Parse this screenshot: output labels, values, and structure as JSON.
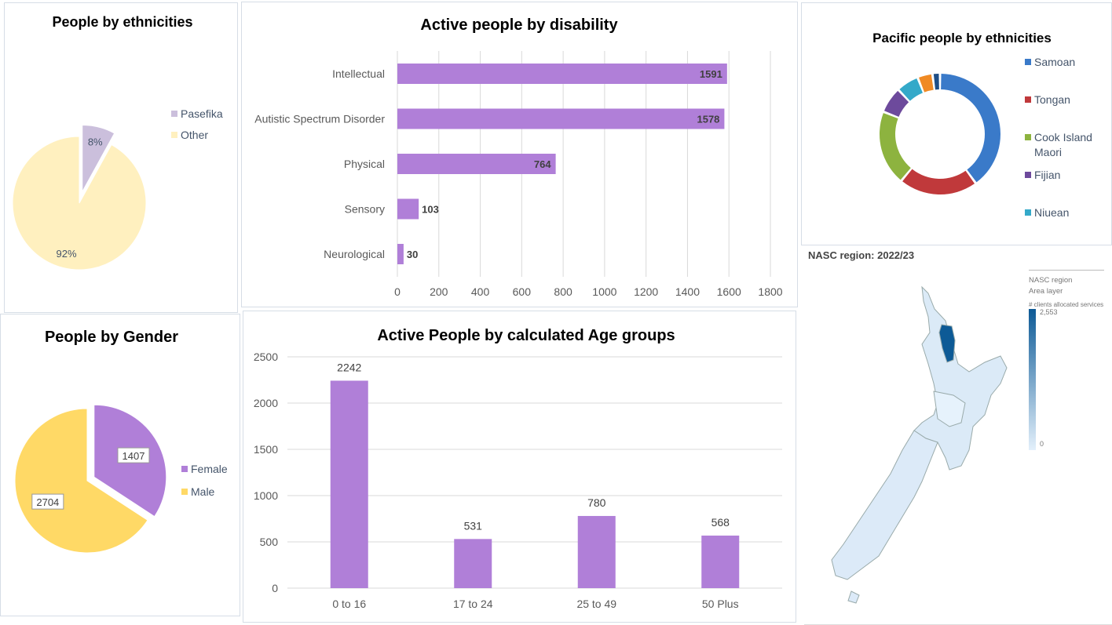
{
  "chart_data": [
    {
      "type": "pie",
      "title": "People by ethnicities",
      "categories": [
        "Pasefika",
        "Other"
      ],
      "values": [
        8,
        92
      ],
      "data_labels": [
        "8%",
        "92%"
      ],
      "colors": [
        "#cbbfdc",
        "#fff0bf"
      ],
      "legend": "right"
    },
    {
      "type": "bar",
      "orientation": "horizontal",
      "title": "Active people by disability",
      "categories": [
        "Intellectual",
        "Autistic Spectrum Disorder",
        "Physical",
        "Sensory",
        "Neurological"
      ],
      "values": [
        1591,
        1578,
        764,
        103,
        30
      ],
      "xlim": [
        0,
        1800
      ],
      "xticks": [
        0,
        200,
        400,
        600,
        800,
        1000,
        1200,
        1400,
        1600,
        1800
      ],
      "grid": true,
      "color": "#b07fd8"
    },
    {
      "type": "pie",
      "subtype": "donut",
      "title": "Pacific people by ethnicities",
      "categories": [
        "Samoan",
        "Tongan",
        "Cook Island Maori",
        "Fijian",
        "Niuean",
        "",
        ""
      ],
      "values": [
        40,
        21,
        20,
        7,
        6,
        4,
        2
      ],
      "colors": [
        "#3a7ac9",
        "#c0393b",
        "#8db33f",
        "#6d4a9c",
        "#34a9c9",
        "#f08a24",
        "#1f4e86"
      ],
      "legend": "right"
    },
    {
      "type": "pie",
      "title": "People by Gender",
      "categories": [
        "Female",
        "Male"
      ],
      "values": [
        1407,
        2704
      ],
      "data_labels": [
        "1407",
        "2704"
      ],
      "colors": [
        "#b07fd8",
        "#ffd966"
      ],
      "legend": "right"
    },
    {
      "type": "bar",
      "title": "Active People by calculated Age groups",
      "categories": [
        "0 to 16",
        "17 to 24",
        "25 to 49",
        "50 Plus"
      ],
      "values": [
        2242,
        531,
        780,
        568
      ],
      "ylim": [
        0,
        2500
      ],
      "yticks": [
        0,
        500,
        1000,
        1500,
        2000,
        2500
      ],
      "grid": true,
      "color": "#b07fd8"
    }
  ],
  "map": {
    "title": "NASC region: 2022/23",
    "legend_title": "NASC region",
    "legend_subtitle": "Area layer",
    "measure": "# clients allocated services",
    "max_label": "2,553",
    "min_label": "0",
    "color_high": "#0d5a96",
    "color_low": "#e3f0fb"
  }
}
